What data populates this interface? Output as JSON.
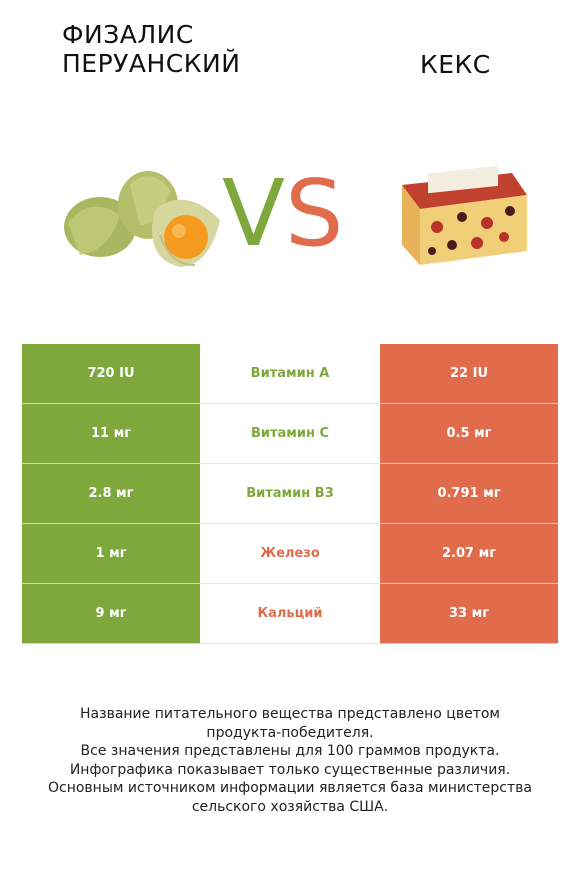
{
  "left_title": "ФИЗАЛИС ПЕРУАНСКИЙ",
  "right_title": "КЕКС",
  "vs": {
    "v": "V",
    "s": "S"
  },
  "colors": {
    "left": "#7ea83c",
    "right": "#e06c4c"
  },
  "rows": [
    {
      "left": "720 IU",
      "name": "Витамин A",
      "right": "22 IU",
      "winner": "left"
    },
    {
      "left": "11 мг",
      "name": "Витамин C",
      "right": "0.5 мг",
      "winner": "left"
    },
    {
      "left": "2.8 мг",
      "name": "Витамин B3",
      "right": "0.791 мг",
      "winner": "left"
    },
    {
      "left": "1 мг",
      "name": "Железо",
      "right": "2.07 мг",
      "winner": "right"
    },
    {
      "left": "9 мг",
      "name": "Кальций",
      "right": "33 мг",
      "winner": "right"
    }
  ],
  "footer": [
    "Название питательного вещества представлено цветом",
    "продукта-победителя.",
    "Все значения представлены для 100 граммов продукта.",
    "Инфографика показывает только существенные различия.",
    "Основным источником информации является база министерства",
    "сельского хозяйства США."
  ],
  "images": {
    "left": "physalis-image",
    "right": "cake-image"
  }
}
